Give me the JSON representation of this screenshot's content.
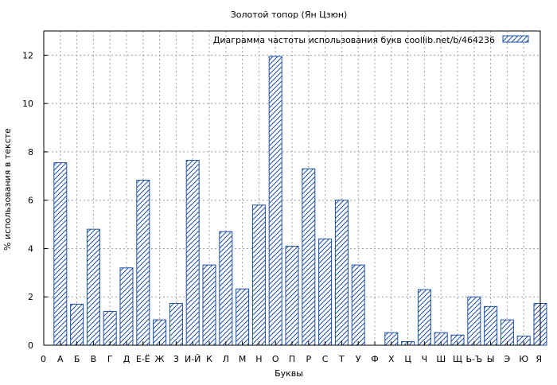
{
  "chart_data": {
    "type": "bar",
    "title": "Золотой топор (Ян Цзюн)",
    "xlabel": "Буквы",
    "ylabel": "% использования в тексте",
    "legend": {
      "label": "Диаграмма частоты использования букв  coollib.net/b/464236",
      "placement": "top-right"
    },
    "categories": [
      "А",
      "Б",
      "В",
      "Г",
      "Д",
      "Е-Ё",
      "Ж",
      "З",
      "И-Й",
      "К",
      "Л",
      "М",
      "Н",
      "О",
      "П",
      "Р",
      "С",
      "Т",
      "У",
      "Ф",
      "Х",
      "Ц",
      "Ч",
      "Ш",
      "Щ",
      "Ь-Ъ",
      "Ы",
      "Э",
      "Ю",
      "Я"
    ],
    "values": [
      7.55,
      1.7,
      4.8,
      1.4,
      3.2,
      6.83,
      1.05,
      1.73,
      7.65,
      3.32,
      4.7,
      2.33,
      5.8,
      11.95,
      4.1,
      7.3,
      4.4,
      6.0,
      3.32,
      0.0,
      0.52,
      0.15,
      2.3,
      0.52,
      0.42,
      2.0,
      1.6,
      1.05,
      0.38,
      1.73
    ],
    "x_ticks": [
      "0",
      "А",
      "Б",
      "В",
      "Г",
      "Д",
      "Е-Ё",
      "Ж",
      "З",
      "И-Й",
      "К",
      "Л",
      "М",
      "Н",
      "О",
      "П",
      "Р",
      "С",
      "Т",
      "У",
      "Ф",
      "Х",
      "Ц",
      "Ч",
      "Ш",
      "Щ",
      "Ь-Ъ",
      "Ы",
      "Э",
      "Ю",
      "Я"
    ],
    "yticks": [
      0,
      2,
      4,
      6,
      8,
      10,
      12
    ],
    "ylim": [
      0,
      13
    ],
    "grid": true,
    "bar_color": "#1f4fa8"
  }
}
